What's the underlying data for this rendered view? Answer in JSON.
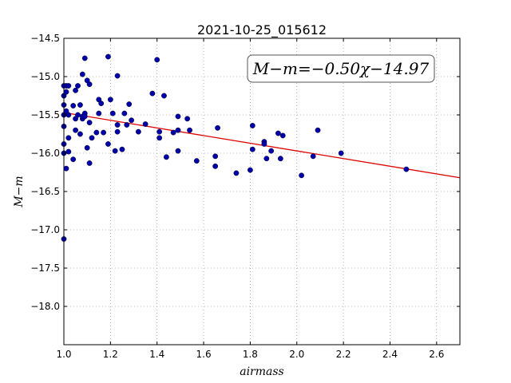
{
  "chart_data": {
    "type": "scatter",
    "title": "2021-10-25_015612",
    "xlabel": "airmass",
    "ylabel": "M−m",
    "xlim": [
      1.0,
      2.7
    ],
    "ylim": [
      -18.5,
      -14.5
    ],
    "y_inverted": true,
    "grid": true,
    "grid_style": "dotted",
    "x_ticks": [
      1.0,
      1.2,
      1.4,
      1.6,
      1.8,
      2.0,
      2.2,
      2.4,
      2.6
    ],
    "x_tick_labels": [
      "1.0",
      "1.2",
      "1.4",
      "1.6",
      "1.8",
      "2.0",
      "2.2",
      "2.4",
      "2.6"
    ],
    "y_ticks": [
      -14.5,
      -15.0,
      -15.5,
      -16.0,
      -16.5,
      -17.0,
      -17.5,
      -18.0
    ],
    "y_tick_labels": [
      "−14.5",
      "−15.0",
      "−15.5",
      "−16.0",
      "−16.5",
      "−17.0",
      "−17.5",
      "−18.0"
    ],
    "annotation": "M−m=−0.50χ−14.97",
    "fit": {
      "slope": -0.5,
      "intercept": -14.97
    },
    "colors": {
      "points": "#0000aa",
      "fit_line": "#dd0000",
      "grid": "#808080"
    },
    "points": [
      [
        1.0,
        -15.12
      ],
      [
        1.0,
        -15.25
      ],
      [
        1.0,
        -15.37
      ],
      [
        1.0,
        -15.5
      ],
      [
        1.0,
        -15.65
      ],
      [
        1.0,
        -15.88
      ],
      [
        1.0,
        -16.0
      ],
      [
        1.01,
        -15.12
      ],
      [
        1.01,
        -15.2
      ],
      [
        1.01,
        -15.45
      ],
      [
        1.01,
        -16.2
      ],
      [
        1.02,
        -15.12
      ],
      [
        1.02,
        -15.5
      ],
      [
        1.02,
        -15.8
      ],
      [
        1.02,
        -15.98
      ],
      [
        1.04,
        -15.38
      ],
      [
        1.04,
        -16.08
      ],
      [
        1.05,
        -15.18
      ],
      [
        1.05,
        -15.55
      ],
      [
        1.05,
        -15.7
      ],
      [
        1.06,
        -15.12
      ],
      [
        1.06,
        -15.5
      ],
      [
        1.07,
        -15.37
      ],
      [
        1.07,
        -15.75
      ],
      [
        1.08,
        -14.97
      ],
      [
        1.08,
        -15.55
      ],
      [
        1.08,
        -15.52
      ],
      [
        1.09,
        -14.76
      ],
      [
        1.09,
        -15.48
      ],
      [
        1.09,
        -15.52
      ],
      [
        1.1,
        -15.05
      ],
      [
        1.1,
        -15.93
      ],
      [
        1.11,
        -15.1
      ],
      [
        1.11,
        -15.6
      ],
      [
        1.11,
        -16.13
      ],
      [
        1.12,
        -15.8
      ],
      [
        1.14,
        -15.73
      ],
      [
        1.15,
        -15.3
      ],
      [
        1.15,
        -15.48
      ],
      [
        1.16,
        -15.35
      ],
      [
        1.17,
        -15.73
      ],
      [
        1.19,
        -14.74
      ],
      [
        1.19,
        -15.88
      ],
      [
        1.2,
        -15.3
      ],
      [
        1.21,
        -15.48
      ],
      [
        1.22,
        -15.97
      ],
      [
        1.23,
        -14.99
      ],
      [
        1.23,
        -15.63
      ],
      [
        1.23,
        -15.72
      ],
      [
        1.25,
        -15.95
      ],
      [
        1.26,
        -15.48
      ],
      [
        1.27,
        -15.63
      ],
      [
        1.28,
        -15.36
      ],
      [
        1.29,
        -15.57
      ],
      [
        1.32,
        -15.72
      ],
      [
        1.35,
        -15.62
      ],
      [
        1.38,
        -15.22
      ],
      [
        1.4,
        -14.78
      ],
      [
        1.41,
        -15.72
      ],
      [
        1.41,
        -15.8
      ],
      [
        1.43,
        -15.25
      ],
      [
        1.44,
        -16.05
      ],
      [
        1.47,
        -15.73
      ],
      [
        1.49,
        -15.52
      ],
      [
        1.49,
        -15.7
      ],
      [
        1.49,
        -15.97
      ],
      [
        1.53,
        -15.55
      ],
      [
        1.54,
        -15.7
      ],
      [
        1.57,
        -16.1
      ],
      [
        1.65,
        -16.04
      ],
      [
        1.65,
        -16.17
      ],
      [
        1.66,
        -15.67
      ],
      [
        1.74,
        -16.26
      ],
      [
        1.8,
        -16.22
      ],
      [
        1.81,
        -15.64
      ],
      [
        1.81,
        -15.95
      ],
      [
        1.86,
        -15.85
      ],
      [
        1.86,
        -15.88
      ],
      [
        1.87,
        -16.07
      ],
      [
        1.89,
        -15.97
      ],
      [
        1.92,
        -15.74
      ],
      [
        1.93,
        -16.07
      ],
      [
        1.94,
        -15.77
      ],
      [
        2.02,
        -16.29
      ],
      [
        2.07,
        -16.04
      ],
      [
        2.09,
        -15.7
      ],
      [
        2.19,
        -16.0
      ],
      [
        2.47,
        -16.21
      ],
      [
        1.0,
        -17.12
      ]
    ]
  }
}
